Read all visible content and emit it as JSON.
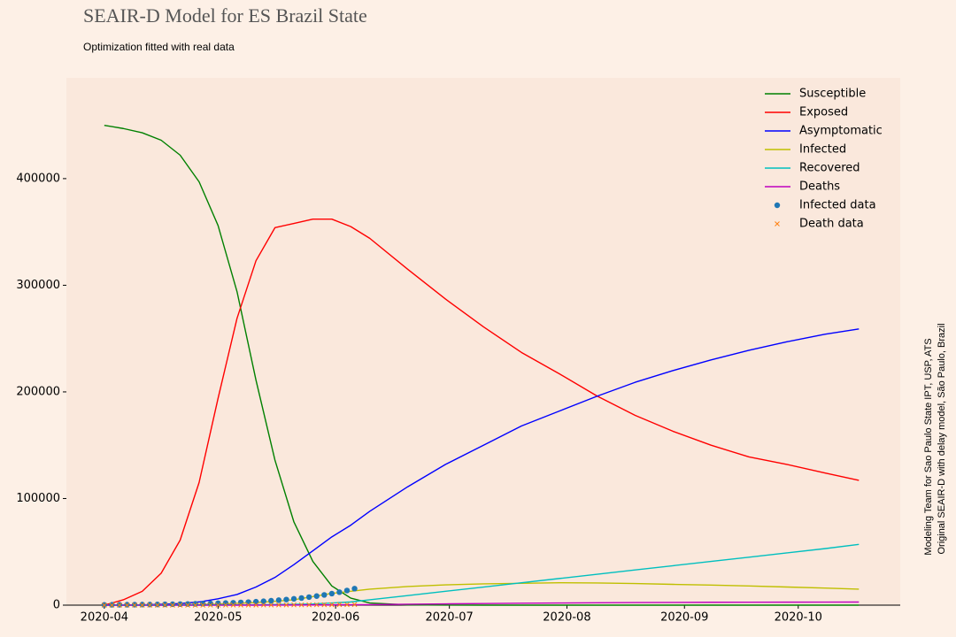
{
  "chart_data": {
    "type": "line",
    "title": "SEAIR-D Model for ES Brazil State",
    "subtitle": "Optimization fitted with real data",
    "annotations": [
      "Modeling Team for Sao Paulo State IPT, USP, ATS",
      "Original SEAIR-D with delay model, São Paulo, Brazil"
    ],
    "x": [
      0,
      5,
      10,
      15,
      20,
      25,
      30,
      35,
      40,
      45,
      50,
      55,
      60,
      65,
      70,
      80,
      90,
      100,
      110,
      120,
      130,
      140,
      150,
      160,
      170,
      180,
      190,
      199
    ],
    "xlim": [
      -10,
      209.9
    ],
    "xticks": [
      {
        "value": 0,
        "label": "2020-04"
      },
      {
        "value": 30,
        "label": "2020-05"
      },
      {
        "value": 61,
        "label": "2020-06"
      },
      {
        "value": 91,
        "label": "2020-07"
      },
      {
        "value": 122,
        "label": "2020-08"
      },
      {
        "value": 153,
        "label": "2020-09"
      },
      {
        "value": 183,
        "label": "2020-10"
      }
    ],
    "ylim": [
      0,
      494500
    ],
    "yticks": [
      0,
      100000,
      200000,
      300000,
      400000
    ],
    "legend": "upper right",
    "series": [
      {
        "name": "Susceptible",
        "color": "#008000",
        "values": [
          450000,
          447000,
          443000,
          436000,
          422000,
          397000,
          356000,
          294000,
          211000,
          136000,
          78000,
          41000,
          18000,
          6600,
          2000,
          300,
          100,
          0,
          0,
          0,
          0,
          0,
          0,
          0,
          0,
          0,
          0,
          0
        ]
      },
      {
        "name": "Exposed",
        "color": "#ff0000",
        "values": [
          0,
          5000,
          13000,
          30000,
          61000,
          115000,
          194000,
          269000,
          323000,
          354000,
          358000,
          362000,
          362000,
          355000,
          344000,
          315000,
          287000,
          261000,
          237000,
          217000,
          196000,
          178000,
          163000,
          150000,
          139000,
          132000,
          124000,
          117000
        ]
      },
      {
        "name": "Asymptomatic",
        "color": "#0000ff",
        "values": [
          0,
          100,
          300,
          800,
          1500,
          3000,
          6000,
          10000,
          17000,
          26000,
          38000,
          51000,
          64000,
          75000,
          88000,
          111000,
          132000,
          150000,
          168000,
          182000,
          196000,
          209000,
          220000,
          230000,
          239000,
          247000,
          254000,
          259000
        ]
      },
      {
        "name": "Infected",
        "color": "#bfbf00",
        "values": [
          0,
          50,
          100,
          200,
          400,
          700,
          1000,
          1700,
          2500,
          3600,
          5000,
          8000,
          11000,
          13000,
          15000,
          17500,
          19000,
          20000,
          20500,
          21000,
          20800,
          20300,
          19500,
          18800,
          18000,
          17000,
          16000,
          15000
        ]
      },
      {
        "name": "Recovered",
        "color": "#00bfbf",
        "values": [
          0,
          0,
          0,
          0,
          100,
          100,
          200,
          300,
          400,
          600,
          800,
          1100,
          2000,
          3000,
          5000,
          9000,
          13000,
          17000,
          21000,
          25000,
          29000,
          33000,
          37000,
          41000,
          45000,
          49000,
          53000,
          57000
        ]
      },
      {
        "name": "Deaths",
        "color": "#bf00bf",
        "values": [
          0,
          0,
          0,
          0,
          0,
          0,
          0,
          0,
          0,
          50,
          100,
          200,
          300,
          400,
          500,
          900,
          1200,
          1500,
          1800,
          2000,
          2200,
          2400,
          2550,
          2700,
          2750,
          2800,
          2850,
          2900
        ]
      },
      {
        "name": "Infected data",
        "color": "#1f77b4",
        "marker": "o",
        "x": [
          0,
          2,
          4,
          6,
          8,
          10,
          12,
          14,
          16,
          18,
          20,
          22,
          24,
          26,
          28,
          30,
          32,
          34,
          36,
          38,
          40,
          42,
          44,
          46,
          48,
          50,
          52,
          54,
          56,
          58,
          60,
          62,
          64,
          66
        ],
        "values": [
          290,
          330,
          370,
          420,
          470,
          530,
          600,
          680,
          770,
          870,
          980,
          1100,
          1240,
          1400,
          1580,
          1780,
          2010,
          2270,
          2560,
          2890,
          3250,
          3670,
          4140,
          4670,
          5260,
          5930,
          6690,
          7540,
          8500,
          9590,
          10810,
          12190,
          13750,
          15500
        ]
      },
      {
        "name": "Death data",
        "color": "#ff7f0e",
        "marker": "x",
        "x": [
          0,
          2,
          4,
          6,
          8,
          10,
          12,
          14,
          16,
          18,
          20,
          22,
          24,
          26,
          28,
          30,
          32,
          34,
          36,
          38,
          40,
          42,
          44,
          46,
          48,
          50,
          52,
          54,
          56,
          58,
          60,
          62,
          64,
          66
        ],
        "values": [
          0,
          0,
          1,
          2,
          3,
          4,
          6,
          8,
          10,
          13,
          17,
          21,
          26,
          32,
          40,
          48,
          58,
          70,
          84,
          100,
          118,
          138,
          160,
          185,
          212,
          242,
          275,
          310,
          348,
          390,
          435,
          485,
          540,
          600
        ]
      }
    ]
  }
}
